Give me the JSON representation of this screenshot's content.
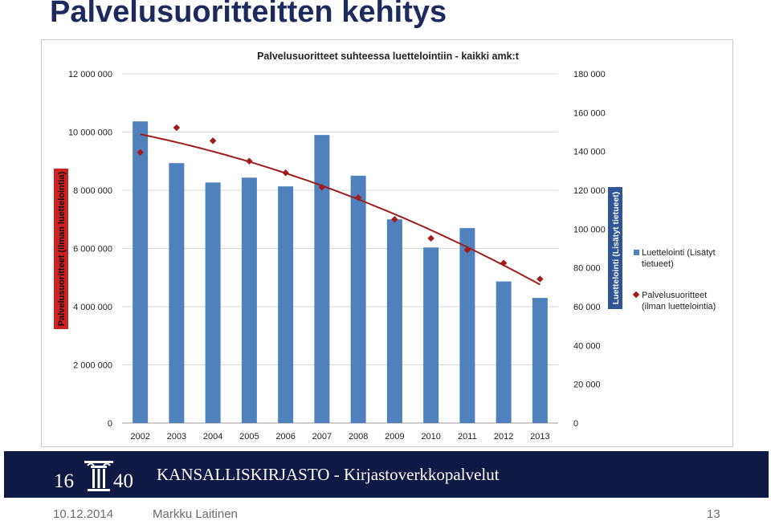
{
  "slide": {
    "title": "Palvelusuoritteitten kehitys"
  },
  "chart_data": {
    "type": "bar",
    "title": "Palvelusuoritteet suhteessa luettelointiin - kaikki amk:t",
    "categories": [
      "2002",
      "2003",
      "2004",
      "2005",
      "2006",
      "2007",
      "2008",
      "2009",
      "2010",
      "2011",
      "2012",
      "2013"
    ],
    "series": [
      {
        "name": "Luettelointi (Lisätyt tietueet)",
        "type": "bar",
        "axis": "right",
        "values": [
          155500,
          134000,
          124000,
          126500,
          122000,
          148500,
          127500,
          105000,
          90500,
          100500,
          73000,
          64500
        ],
        "color": "#4f81bd"
      },
      {
        "name": "Palvelusuoritteet (ilman luettelointia)",
        "type": "scatter",
        "axis": "left",
        "values": [
          9300000,
          10150000,
          9700000,
          9000000,
          8600000,
          8100000,
          7750000,
          7000000,
          6350000,
          5950000,
          5500000,
          4950000
        ],
        "color": "#a31c1c"
      }
    ],
    "trendline": {
      "series": "Palvelusuoritteet (ilman luettelointia)",
      "kind": "polynomial",
      "color": "#a31c1c"
    },
    "left_axis": {
      "label": "Palvelusuoritteet (ilman luettelointia)",
      "ylim": [
        0,
        12000000
      ],
      "ticks": [
        "0",
        "2 000 000",
        "4 000 000",
        "6 000 000",
        "8 000 000",
        "10 000 000",
        "12 000 000"
      ]
    },
    "right_axis": {
      "label": "Luettelointi (Lisätyt tietueet)",
      "ylim": [
        0,
        180000
      ],
      "ticks": [
        "0",
        "20 000",
        "40 000",
        "60 000",
        "80 000",
        "100 000",
        "120 000",
        "140 000",
        "160 000",
        "180 000"
      ]
    },
    "grid": true,
    "legend_position": "right"
  },
  "footer": {
    "logo_left": "16",
    "logo_right": "40",
    "org": "KANSALLISKIRJASTO - Kirjastoverkkopalvelut",
    "date": "10.12.2014",
    "author": "Markku Laitinen",
    "page": "13"
  },
  "colors": {
    "title": "#1c2a5e",
    "footer_band": "#0f1a44",
    "axis_label_bg": "#cc2222"
  }
}
